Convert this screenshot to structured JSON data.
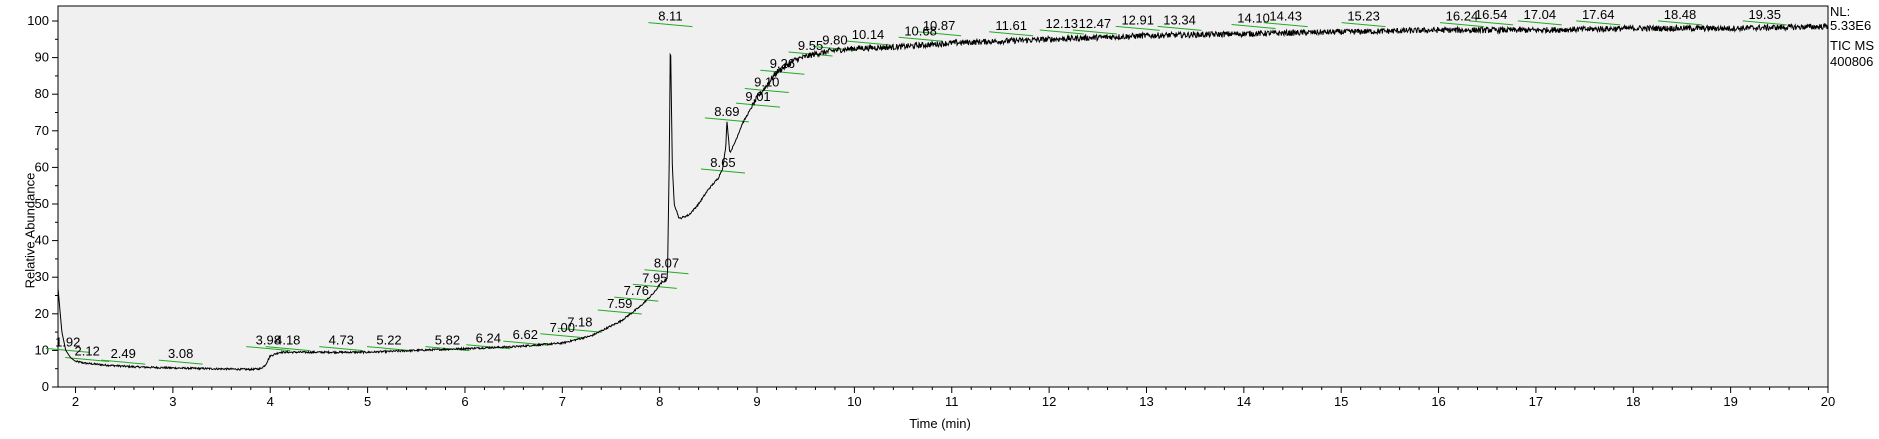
{
  "header": {
    "nl_label": "NL:",
    "nl_value": "5.33E6",
    "trace_label": "TIC MS",
    "file_id": "400806"
  },
  "chart_data": {
    "type": "line",
    "xlabel": "Time (min)",
    "ylabel": "Relative Abundance",
    "xlim": [
      1.82,
      20.0
    ],
    "ylim": [
      0,
      100
    ],
    "x_ticks": [
      2,
      3,
      4,
      5,
      6,
      7,
      8,
      9,
      10,
      11,
      12,
      13,
      14,
      15,
      16,
      17,
      18,
      19,
      20
    ],
    "y_ticks": [
      0,
      10,
      20,
      30,
      40,
      50,
      60,
      70,
      80,
      90,
      100
    ],
    "grid": false,
    "line_color": "#000000",
    "marker_color": "#22aa22",
    "plot_background": "#f0f0f0",
    "series": [
      {
        "x": [
          1.82,
          1.86,
          1.9,
          1.95,
          2.0,
          2.1,
          2.3,
          2.6,
          3.0,
          3.4,
          3.8,
          3.9,
          3.95,
          4.0,
          4.1,
          4.5,
          5.0,
          5.5,
          6.0,
          6.5,
          7.0,
          7.3,
          7.6,
          7.8,
          7.95,
          8.0,
          8.05,
          8.08,
          8.1,
          8.11,
          8.13,
          8.15,
          8.2,
          8.3,
          8.4,
          8.5,
          8.6,
          8.65,
          8.68,
          8.69,
          8.72,
          8.76,
          8.85,
          9.0,
          9.2,
          9.4,
          9.6,
          9.8,
          10.0,
          10.5,
          11.0,
          11.5,
          12.0,
          12.5,
          13.0,
          14.0,
          15.0,
          16.0,
          17.0,
          18.0,
          19.0,
          20.0
        ],
        "y": [
          27,
          15,
          10,
          8,
          7,
          6.5,
          6,
          5.5,
          5.2,
          5,
          4.8,
          5,
          6,
          8.5,
          9.5,
          9.5,
          9.5,
          10,
          10.5,
          11,
          12,
          14,
          18,
          22,
          26,
          28,
          29,
          30,
          65,
          97,
          60,
          50,
          46,
          47,
          50,
          54,
          57,
          60,
          66,
          73,
          64,
          66,
          72,
          79,
          86,
          89.5,
          91,
          92,
          92.5,
          93,
          94,
          94.5,
          95,
          95.5,
          96,
          96.5,
          97,
          97.5,
          97.5,
          98,
          98,
          98.5
        ]
      }
    ],
    "peak_labels": [
      {
        "x": 1.92,
        "y": 10,
        "text": "1.92"
      },
      {
        "x": 2.12,
        "y": 7.5,
        "text": "2.12"
      },
      {
        "x": 2.49,
        "y": 6.8,
        "text": "2.49"
      },
      {
        "x": 3.08,
        "y": 6.8,
        "text": "3.08"
      },
      {
        "x": 3.98,
        "y": 10.5,
        "text": "3.98"
      },
      {
        "x": 4.18,
        "y": 10.5,
        "text": "4.18"
      },
      {
        "x": 4.73,
        "y": 10.5,
        "text": "4.73"
      },
      {
        "x": 5.22,
        "y": 10.5,
        "text": "5.22"
      },
      {
        "x": 5.82,
        "y": 10.5,
        "text": "5.82"
      },
      {
        "x": 6.24,
        "y": 11,
        "text": "6.24"
      },
      {
        "x": 6.62,
        "y": 12,
        "text": "6.62"
      },
      {
        "x": 7.0,
        "y": 14,
        "text": "7.00"
      },
      {
        "x": 7.18,
        "y": 15.5,
        "text": "7.18"
      },
      {
        "x": 7.59,
        "y": 20.5,
        "text": "7.59"
      },
      {
        "x": 7.76,
        "y": 24,
        "text": "7.76"
      },
      {
        "x": 7.95,
        "y": 27.5,
        "text": "7.95"
      },
      {
        "x": 8.07,
        "y": 31.5,
        "text": "8.07"
      },
      {
        "x": 8.11,
        "y": 99,
        "text": "8.11"
      },
      {
        "x": 8.65,
        "y": 59,
        "text": "8.65"
      },
      {
        "x": 8.69,
        "y": 73,
        "text": "8.69"
      },
      {
        "x": 9.01,
        "y": 77,
        "text": "9.01"
      },
      {
        "x": 9.1,
        "y": 81,
        "text": "9.10"
      },
      {
        "x": 9.26,
        "y": 86,
        "text": "9.26"
      },
      {
        "x": 9.55,
        "y": 91,
        "text": "9.55"
      },
      {
        "x": 9.8,
        "y": 92.5,
        "text": "9.80"
      },
      {
        "x": 10.14,
        "y": 94,
        "text": "10.14"
      },
      {
        "x": 10.68,
        "y": 95,
        "text": "10.68"
      },
      {
        "x": 10.87,
        "y": 96.5,
        "text": "10.87"
      },
      {
        "x": 11.61,
        "y": 96.5,
        "text": "11.61"
      },
      {
        "x": 12.13,
        "y": 97,
        "text": "12.13"
      },
      {
        "x": 12.47,
        "y": 97,
        "text": "12.47"
      },
      {
        "x": 12.91,
        "y": 98,
        "text": "12.91"
      },
      {
        "x": 13.34,
        "y": 98,
        "text": "13.34"
      },
      {
        "x": 14.1,
        "y": 98.5,
        "text": "14.10"
      },
      {
        "x": 14.43,
        "y": 99,
        "text": "14.43"
      },
      {
        "x": 15.23,
        "y": 99,
        "text": "15.23"
      },
      {
        "x": 16.24,
        "y": 99,
        "text": "16.24"
      },
      {
        "x": 16.54,
        "y": 99.5,
        "text": "16.54"
      },
      {
        "x": 17.04,
        "y": 99.5,
        "text": "17.04"
      },
      {
        "x": 17.64,
        "y": 99.5,
        "text": "17.64"
      },
      {
        "x": 18.48,
        "y": 99.5,
        "text": "18.48"
      },
      {
        "x": 19.35,
        "y": 99.5,
        "text": "19.35"
      }
    ]
  }
}
